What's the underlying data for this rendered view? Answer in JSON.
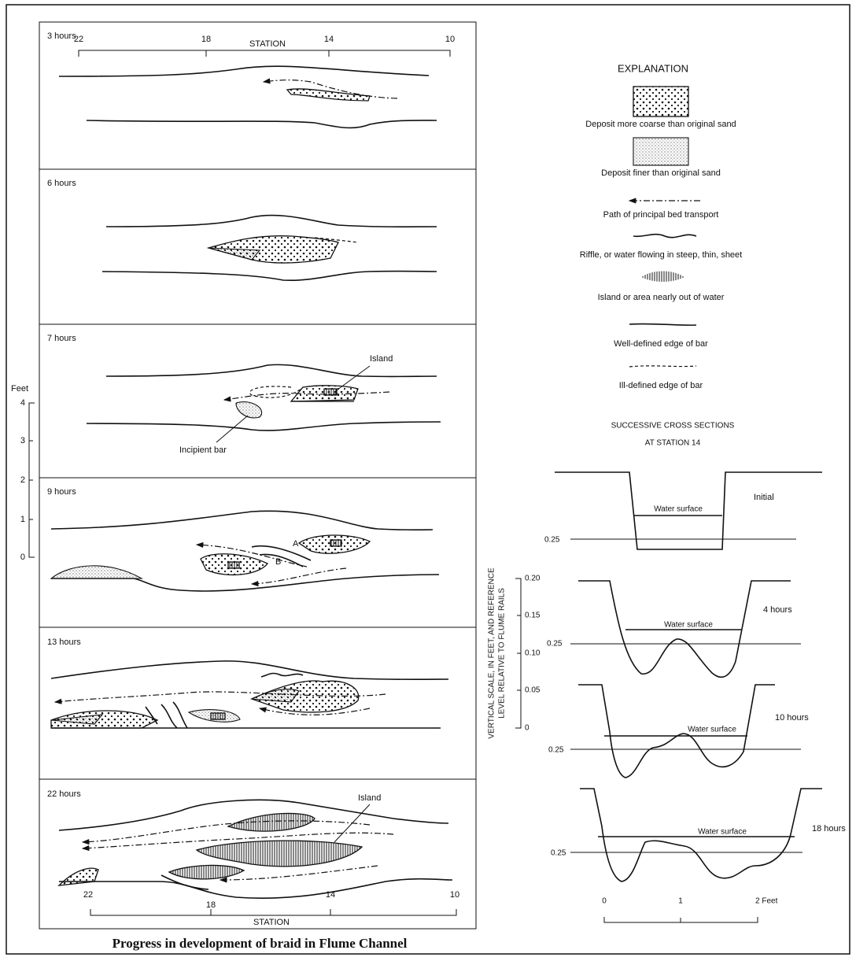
{
  "left_figure": {
    "panels": [
      "3 hours",
      "6 hours",
      "7 hours",
      "9 hours",
      "13 hours",
      "22 hours"
    ],
    "top_station_scale": {
      "title": "STATION",
      "ticks": [
        "22",
        "18",
        "14",
        "10"
      ]
    },
    "bottom_station_scale": {
      "title": "STATION",
      "ticks": [
        "22",
        "18",
        "14",
        "10"
      ]
    },
    "annotations": {
      "island_7h": "Island",
      "incipient_bar": "Incipient bar",
      "bar_a": "A",
      "bar_b": "B",
      "island_22h": "Island"
    },
    "feet_scale": {
      "title": "Feet",
      "ticks": [
        "4",
        "3",
        "2",
        "1",
        "0"
      ]
    }
  },
  "explanation": {
    "title": "EXPLANATION",
    "items": [
      "Deposit more coarse than original sand",
      "Deposit finer than original sand",
      "Path of principal bed transport",
      "Riffle, or water flowing in steep, thin, sheet",
      "Island or area nearly out of water",
      "Well-defined edge of bar",
      "Ill-defined edge of bar"
    ]
  },
  "cross_sections": {
    "title": [
      "SUCCESSIVE CROSS SECTIONS",
      "AT STATION 14"
    ],
    "sections": [
      {
        "label": "Initial",
        "water_surface": "Water surface",
        "reference": "0.25"
      },
      {
        "label": "4 hours",
        "water_surface": "Water surface",
        "reference": "0.25"
      },
      {
        "label": "10 hours",
        "water_surface": "Water surface",
        "reference": "0.25"
      },
      {
        "label": "18 hours",
        "water_surface": "Water surface",
        "reference": "0.25"
      }
    ],
    "vertical_scale": {
      "title": [
        "VERTICAL SCALE, IN FEET, AND REFERENCE",
        "LEVEL RELATIVE TO FLUME RAILS"
      ],
      "ticks": [
        "0.20",
        "0.15",
        "0.10",
        "0.05",
        "0"
      ]
    },
    "horizontal_scale": {
      "ticks": [
        "0",
        "1",
        "2 Feet"
      ]
    }
  },
  "caption": "Progress in development of braid in Flume Channel"
}
